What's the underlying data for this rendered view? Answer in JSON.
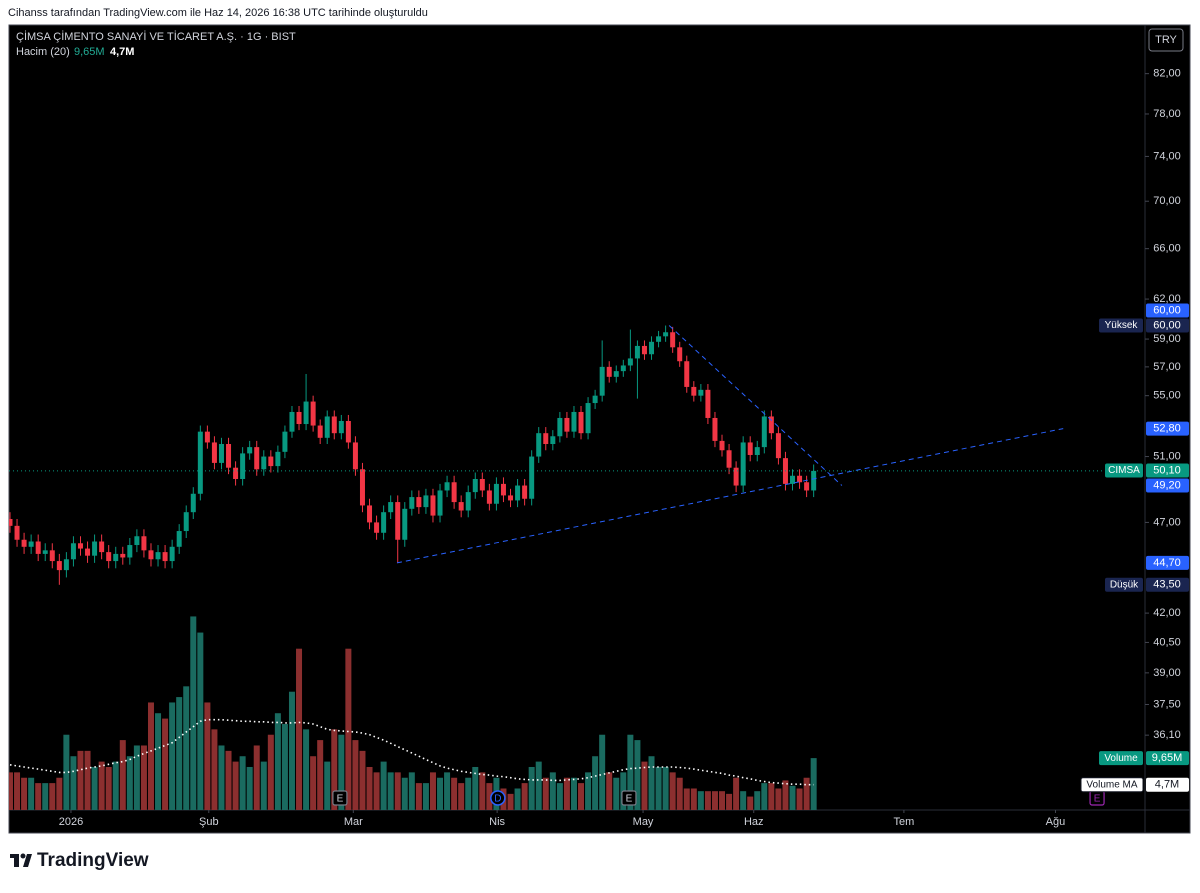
{
  "chart_data": {
    "type": "candlestick",
    "header": "Cihanss tarafından TradingView.com ile Haz 14, 2026 16:38 UTC tarihinde oluşturuldu",
    "title": "ÇİMSA ÇİMENTO SANAYİ VE TİCARET A.Ş. · 1G · BIST",
    "indicator": "Hacim (20)",
    "indicator_labels": [
      "9,65M",
      "4,7M"
    ],
    "currency": "TRY",
    "brand": "TradingView",
    "log_scale": true,
    "last_price_line": true,
    "xlim": [
      -0.14,
      161
    ],
    "ylim": [
      32.9,
      87.1
    ],
    "y2lim": [
      0,
      146
    ],
    "xticks": [
      {
        "value": 8.65,
        "label": "2026"
      },
      {
        "value": 28.2,
        "label": "Şub"
      },
      {
        "value": 48.7,
        "label": "Mar"
      },
      {
        "value": 69.1,
        "label": "Nis"
      },
      {
        "value": 89.8,
        "label": "May"
      },
      {
        "value": 105.5,
        "label": "Haz"
      },
      {
        "value": 126.8,
        "label": "Tem"
      },
      {
        "value": 148.3,
        "label": "Ağu"
      }
    ],
    "yticks": [
      {
        "value": 82,
        "label": "82,00"
      },
      {
        "value": 78,
        "label": "78,00"
      },
      {
        "value": 74,
        "label": "74,00"
      },
      {
        "value": 70,
        "label": "70,00"
      },
      {
        "value": 66,
        "label": "66,00"
      },
      {
        "value": 62,
        "label": "62,00"
      },
      {
        "value": 59,
        "label": "59,00"
      },
      {
        "value": 57,
        "label": "57,00"
      },
      {
        "value": 55,
        "label": "55,00"
      },
      {
        "value": 51,
        "label": "51,00"
      },
      {
        "value": 47,
        "label": "47,00"
      },
      {
        "value": 42,
        "label": "42,00"
      },
      {
        "value": 40.5,
        "label": "40,50"
      },
      {
        "value": 39,
        "label": "39,00"
      },
      {
        "value": 37.5,
        "label": "37,50"
      },
      {
        "value": 36.1,
        "label": "36,10"
      }
    ],
    "up_color": "#089981",
    "down_color": "#f23645",
    "candles": {
      "open": [
        47.2,
        46.8,
        46.0,
        45.6,
        45.9,
        45.2,
        45.4,
        44.8,
        44.3,
        44.9,
        45.8,
        45.5,
        45.1,
        45.9,
        45.3,
        44.8,
        45.2,
        45.0,
        45.7,
        46.2,
        45.4,
        44.9,
        45.3,
        44.8,
        45.6,
        46.5,
        47.6,
        48.7,
        52.6,
        51.9,
        50.6,
        51.8,
        50.3,
        49.6,
        51.2,
        51.6,
        50.2,
        51.0,
        50.4,
        51.3,
        52.6,
        53.9,
        53.1,
        54.6,
        53.0,
        52.2,
        53.6,
        52.5,
        53.3,
        51.9,
        50.2,
        48.0,
        47.0,
        46.4,
        47.6,
        48.2,
        46.0,
        47.8,
        48.5,
        47.9,
        48.6,
        47.4,
        48.9,
        49.4,
        48.2,
        47.7,
        48.8,
        49.6,
        48.9,
        48.1,
        49.3,
        48.6,
        48.3,
        49.2,
        48.4,
        51.0,
        52.5,
        51.8,
        52.3,
        53.5,
        52.6,
        53.9,
        52.5,
        54.5,
        55.0,
        57.0,
        56.3,
        56.7,
        57.1,
        57.6,
        58.5,
        57.9,
        58.8,
        59.2,
        59.5,
        58.4,
        57.4,
        55.6,
        55.0,
        55.4,
        53.5,
        52.0,
        51.4,
        50.3,
        49.2,
        51.9,
        51.1,
        51.6,
        53.6,
        52.5,
        50.9,
        49.3,
        49.8,
        49.4,
        48.9
      ],
      "high": [
        47.6,
        47.2,
        46.4,
        46.3,
        46.3,
        45.8,
        45.8,
        45.2,
        45.3,
        46.2,
        46.2,
        45.9,
        46.3,
        46.3,
        45.7,
        45.6,
        45.6,
        46.1,
        46.6,
        46.6,
        45.8,
        45.7,
        45.7,
        46.0,
        46.9,
        48.0,
        49.1,
        53.0,
        53.0,
        52.3,
        52.2,
        52.2,
        50.7,
        51.6,
        52.0,
        52.0,
        51.4,
        51.4,
        51.7,
        53.0,
        54.3,
        54.3,
        56.5,
        55.0,
        53.4,
        54.0,
        54.0,
        53.7,
        53.7,
        52.3,
        50.6,
        48.4,
        47.4,
        48.0,
        48.6,
        48.6,
        48.2,
        48.9,
        48.9,
        49.0,
        49.0,
        49.3,
        49.8,
        49.8,
        48.6,
        49.2,
        50.0,
        50.0,
        49.3,
        49.7,
        49.7,
        49.0,
        49.6,
        49.6,
        51.4,
        52.9,
        52.9,
        52.7,
        53.9,
        53.9,
        54.3,
        54.3,
        54.9,
        55.4,
        58.9,
        57.4,
        57.1,
        57.5,
        59.7,
        58.9,
        58.9,
        59.2,
        59.6,
        60.0,
        59.9,
        58.8,
        57.8,
        56.0,
        55.8,
        55.8,
        53.9,
        52.4,
        51.8,
        50.7,
        52.3,
        52.3,
        52.0,
        54.0,
        54.0,
        52.9,
        51.3,
        50.2,
        50.2,
        49.8,
        50.5
      ],
      "low": [
        46.4,
        45.6,
        45.2,
        45.2,
        44.8,
        44.8,
        44.4,
        43.5,
        43.9,
        44.5,
        45.1,
        44.7,
        44.7,
        44.9,
        44.4,
        44.4,
        44.6,
        44.6,
        45.3,
        45.0,
        44.5,
        44.5,
        44.4,
        44.4,
        45.2,
        46.1,
        47.2,
        48.3,
        51.5,
        50.2,
        50.2,
        49.9,
        49.2,
        49.2,
        50.8,
        49.8,
        49.8,
        50.0,
        50.0,
        50.9,
        52.2,
        52.7,
        52.7,
        52.6,
        51.8,
        51.8,
        52.1,
        52.1,
        51.5,
        49.8,
        47.6,
        46.6,
        46.0,
        46.0,
        47.2,
        44.7,
        45.6,
        47.4,
        47.5,
        47.5,
        47.0,
        47.0,
        48.5,
        47.8,
        47.3,
        47.3,
        48.4,
        48.5,
        47.7,
        47.7,
        48.2,
        47.9,
        47.9,
        48.0,
        48.0,
        50.6,
        51.4,
        51.4,
        51.9,
        52.2,
        52.2,
        52.1,
        52.1,
        54.1,
        54.6,
        55.9,
        55.9,
        56.3,
        56.7,
        54.8,
        57.5,
        57.5,
        58.4,
        58.8,
        58.0,
        57.0,
        55.2,
        54.6,
        54.6,
        53.1,
        51.6,
        51.0,
        49.9,
        48.8,
        48.8,
        50.7,
        50.7,
        51.2,
        52.1,
        50.5,
        48.9,
        48.9,
        49.0,
        48.5,
        48.5
      ],
      "close": [
        46.8,
        46.0,
        45.6,
        45.9,
        45.2,
        45.4,
        44.8,
        44.3,
        44.9,
        45.8,
        45.5,
        45.1,
        45.9,
        45.3,
        44.8,
        45.2,
        45.0,
        45.7,
        46.2,
        45.4,
        44.9,
        45.3,
        44.8,
        45.6,
        46.5,
        47.6,
        48.7,
        52.6,
        51.9,
        50.6,
        51.8,
        50.3,
        49.6,
        51.2,
        51.6,
        50.2,
        51.0,
        50.4,
        51.3,
        52.6,
        53.9,
        53.1,
        54.6,
        53.0,
        52.2,
        53.6,
        52.5,
        53.3,
        51.9,
        50.2,
        48.0,
        47.0,
        46.4,
        47.6,
        48.2,
        46.0,
        47.8,
        48.5,
        47.9,
        48.6,
        47.4,
        48.9,
        49.4,
        48.2,
        47.7,
        48.8,
        49.6,
        48.9,
        48.1,
        49.3,
        48.6,
        48.3,
        49.2,
        48.4,
        51.0,
        52.5,
        51.8,
        52.3,
        53.5,
        52.6,
        53.9,
        52.5,
        54.5,
        55.0,
        57.0,
        56.3,
        56.7,
        57.1,
        57.6,
        58.5,
        57.9,
        58.8,
        59.2,
        59.5,
        58.4,
        57.4,
        55.6,
        55.0,
        55.4,
        53.5,
        52.0,
        51.4,
        50.3,
        49.2,
        51.9,
        51.1,
        51.6,
        53.6,
        52.5,
        50.9,
        49.3,
        49.8,
        49.4,
        48.9,
        50.1
      ]
    },
    "volume": {
      "axis": "y2",
      "up_color": "#1a6b60",
      "down_color": "#8c2f2f",
      "values": [
        7,
        7,
        6,
        6,
        5,
        5,
        5,
        6,
        14,
        10,
        11,
        11,
        8,
        9,
        8,
        9,
        13,
        10,
        12,
        12,
        20,
        18,
        17,
        20,
        21,
        23,
        36,
        33,
        20,
        15,
        12,
        11,
        9,
        10,
        8,
        12,
        9,
        14,
        18,
        16,
        22,
        30,
        15,
        10,
        13,
        9,
        15,
        14,
        30,
        13,
        11,
        8,
        7,
        9,
        7,
        7,
        6,
        7,
        5,
        5,
        7,
        6,
        7,
        6,
        5,
        6,
        8,
        7,
        5,
        6,
        4,
        3,
        4,
        5,
        8,
        9,
        6,
        7,
        5,
        6,
        6,
        5,
        7,
        10,
        14,
        7,
        6,
        7,
        14,
        13,
        9,
        10,
        8,
        8,
        7,
        6,
        4,
        4,
        3.5,
        3.5,
        3.5,
        3.5,
        3,
        6,
        3.5,
        2.5,
        3.5,
        5,
        5,
        4,
        5.5,
        4.5,
        4,
        6,
        9.65
      ]
    },
    "volume_ma": {
      "axis": "y2",
      "color": "#ffffff",
      "values": [
        8.4,
        8.2,
        8.0,
        7.8,
        7.6,
        7.4,
        7.2,
        7.0,
        7.0,
        7.2,
        7.5,
        7.8,
        8.0,
        8.2,
        8.5,
        8.8,
        9.0,
        9.4,
        10,
        10.5,
        11,
        11.5,
        12,
        12.5,
        13.5,
        14.5,
        15.5,
        16.5,
        16.8,
        16.8,
        16.8,
        16.7,
        16.6,
        16.5,
        16.5,
        16.4,
        16.4,
        16.3,
        16.3,
        16.2,
        16.2,
        16.3,
        16.2,
        16.0,
        15.5,
        15.0,
        14.8,
        14.7,
        14.6,
        14.5,
        14.3,
        14.0,
        13.5,
        13.0,
        12.4,
        11.8,
        11.2,
        10.6,
        10.0,
        9.4,
        8.8,
        8.2,
        7.8,
        7.5,
        7.2,
        7.0,
        6.8,
        6.6,
        6.5,
        6.3,
        6.2,
        6.0,
        5.8,
        5.7,
        5.6,
        5.6,
        5.6,
        5.5,
        5.5,
        5.6,
        5.7,
        5.8,
        6.0,
        6.3,
        6.6,
        6.9,
        7.2,
        7.5,
        7.7,
        7.8,
        7.9,
        8.0,
        8.0,
        8.0,
        8.0,
        7.9,
        7.8,
        7.6,
        7.4,
        7.2,
        7.0,
        6.8,
        6.5,
        6.3,
        6.0,
        5.8,
        5.5,
        5.3,
        5.1,
        5.0,
        4.9,
        4.8,
        4.8,
        4.7,
        4.7
      ]
    },
    "trendlines": [
      {
        "x": [
          54.9,
          149.4
        ],
        "y": [
          44.7,
          52.8
        ]
      },
      {
        "x": [
          93.5,
          118
        ],
        "y": [
          60,
          49.2
        ]
      }
    ],
    "trendline_color": "#2962ff",
    "price_badges": [
      {
        "value": 60,
        "label": "60,00",
        "color": "#2962ff"
      },
      {
        "name": "Yüksek",
        "value": 60,
        "label": "60,00",
        "color": "#1a2550"
      },
      {
        "value": 52.8,
        "label": "52,80",
        "color": "#2962ff"
      },
      {
        "name": "CIMSA",
        "value": 50.1,
        "label": "50,10",
        "color": "#089981"
      },
      {
        "value": 49.2,
        "label": "49,20",
        "color": "#2962ff"
      },
      {
        "value": 44.7,
        "label": "44,70",
        "color": "#2962ff"
      },
      {
        "name": "Düşük",
        "value": 43.5,
        "label": "43,50",
        "color": "#1a2550"
      }
    ],
    "volume_badges": [
      {
        "name": "Volume",
        "value": 9.65,
        "label": "9,65M",
        "color": "#089981"
      },
      {
        "name": "Volume MA",
        "value": 4.7,
        "label": "4,7M",
        "color": "#ffffff"
      }
    ],
    "events": [
      {
        "x": 46.8,
        "label": "E",
        "color": "#787b86"
      },
      {
        "x": 69.2,
        "label": "D",
        "color": "#2962ff"
      },
      {
        "x": 87.8,
        "label": "E",
        "color": "#787b86"
      },
      {
        "x": 154.2,
        "label": "E",
        "color": "#9c27b0"
      }
    ]
  }
}
